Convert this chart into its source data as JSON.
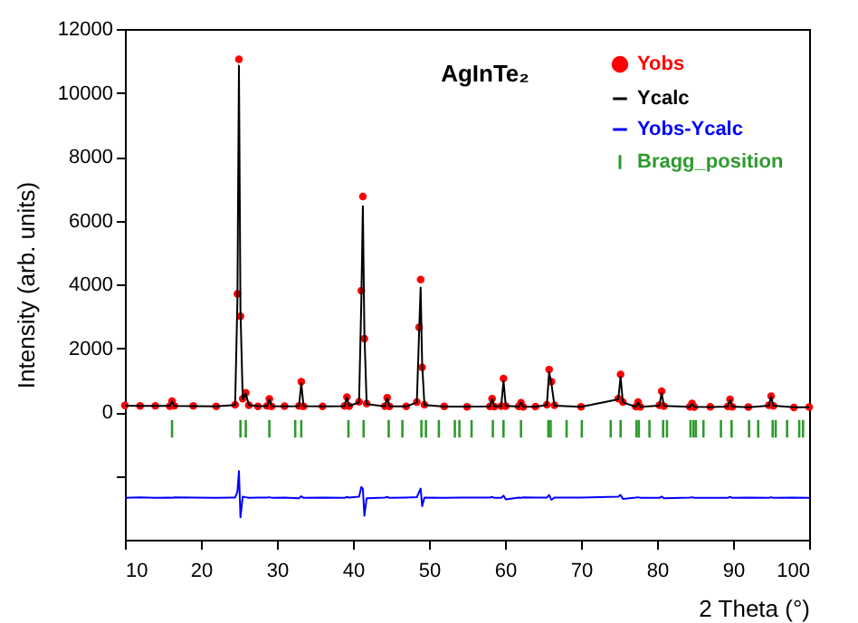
{
  "chart_data": {
    "type": "line",
    "title": "AgInTe₂",
    "xlabel": "2 Theta (°)",
    "ylabel": "Intensity (arb. units)",
    "xlim": [
      10,
      100
    ],
    "xticks": [
      10,
      20,
      30,
      40,
      50,
      60,
      70,
      80,
      90,
      100
    ],
    "ylim": [
      -4000,
      12000
    ],
    "yticks": [
      {
        "value": -2000,
        "label": null
      },
      0,
      2000,
      4000,
      6000,
      8000,
      10000,
      12000
    ],
    "legend": "top right",
    "x": [
      10,
      12,
      14,
      15.9,
      16.2,
      16.5,
      19,
      22,
      24.5,
      24.8,
      25.0,
      25.2,
      25.5,
      25.9,
      26.3,
      27.5,
      28.7,
      29.0,
      29.3,
      31,
      32.9,
      33.2,
      33.5,
      36,
      38.9,
      39.2,
      39.5,
      40.8,
      41.1,
      41.3,
      41.5,
      41.8,
      44.2,
      44.5,
      44.8,
      47,
      48.4,
      48.7,
      48.9,
      49.1,
      49.4,
      52,
      55,
      58.0,
      58.3,
      58.6,
      59.5,
      59.8,
      60.1,
      61.8,
      62.1,
      62.4,
      64,
      65.5,
      65.8,
      66.1,
      66.5,
      70,
      74.9,
      75.2,
      75.5,
      77.2,
      77.5,
      77.8,
      80.3,
      80.6,
      80.9,
      84.3,
      84.6,
      84.9,
      87,
      89.3,
      89.6,
      89.9,
      92,
      94.7,
      95.0,
      95.3,
      98,
      100
    ],
    "series": [
      {
        "name": "Yobs",
        "type": "scatter",
        "marker": "circle",
        "color": "#ff0000",
        "values": [
          205,
          190,
          195,
          185,
          340,
          195,
          190,
          175,
          230,
          3700,
          11050,
          3000,
          420,
          600,
          210,
          180,
          190,
          410,
          180,
          185,
          190,
          950,
          180,
          175,
          190,
          470,
          185,
          320,
          3800,
          6750,
          2300,
          260,
          185,
          450,
          175,
          180,
          310,
          2650,
          4150,
          1400,
          230,
          175,
          165,
          180,
          420,
          170,
          185,
          1050,
          185,
          175,
          290,
          165,
          170,
          230,
          1330,
          950,
          210,
          160,
          420,
          1180,
          310,
          170,
          310,
          160,
          210,
          650,
          185,
          165,
          270,
          155,
          160,
          175,
          400,
          165,
          155,
          210,
          500,
          195,
          145,
          155
        ]
      },
      {
        "name": "Ycalc",
        "color": "#000000",
        "values": [
          200,
          195,
          190,
          190,
          330,
          190,
          185,
          180,
          220,
          3500,
          10850,
          3200,
          400,
          580,
          220,
          185,
          185,
          400,
          185,
          180,
          185,
          900,
          185,
          180,
          185,
          450,
          190,
          300,
          3500,
          6450,
          2500,
          250,
          180,
          430,
          180,
          175,
          300,
          2500,
          3900,
          1500,
          220,
          170,
          170,
          175,
          400,
          175,
          180,
          980,
          190,
          170,
          300,
          170,
          165,
          220,
          1250,
          900,
          200,
          165,
          400,
          1100,
          300,
          165,
          300,
          165,
          200,
          600,
          190,
          160,
          260,
          160,
          155,
          170,
          380,
          170,
          150,
          200,
          480,
          200,
          150,
          150
        ]
      },
      {
        "name": "Yobs-Ycalc",
        "type": "line",
        "color": "#0000ff",
        "values": [
          -2690,
          -2675,
          -2685,
          -2680,
          -2690,
          -2675,
          -2680,
          -2685,
          -2680,
          -2500,
          -1850,
          -3300,
          -2650,
          -2670,
          -2690,
          -2680,
          -2680,
          -2670,
          -2685,
          -2680,
          -2700,
          -2640,
          -2690,
          -2680,
          -2690,
          -2660,
          -2680,
          -2650,
          -2350,
          -2400,
          -3250,
          -2700,
          -2680,
          -2660,
          -2690,
          -2680,
          -2670,
          -2500,
          -2400,
          -2950,
          -2680,
          -2685,
          -2680,
          -2680,
          -2660,
          -2690,
          -2690,
          -2620,
          -2740,
          -2680,
          -2690,
          -2675,
          -2680,
          -2680,
          -2600,
          -2750,
          -2680,
          -2680,
          -2650,
          -2600,
          -2720,
          -2680,
          -2670,
          -2690,
          -2690,
          -2650,
          -2700,
          -2680,
          -2670,
          -2690,
          -2685,
          -2690,
          -2660,
          -2690,
          -2680,
          -2690,
          -2670,
          -2690,
          -2680,
          -2685
        ]
      },
      {
        "name": "Bragg_position",
        "type": "bar",
        "color": "#2e9a2e",
        "x": [
          16.2,
          25.2,
          25.9,
          29.0,
          32.4,
          33.2,
          39.4,
          41.4,
          44.7,
          46.5,
          49.0,
          49.6,
          51.3,
          53.4,
          54.0,
          55.6,
          58.4,
          59.8,
          62.1,
          65.7,
          66.0,
          68.1,
          70.1,
          73.9,
          75.2,
          77.3,
          77.6,
          79.0,
          80.8,
          81.3,
          84.4,
          84.8,
          85.1,
          86.1,
          88.4,
          89.8,
          92.1,
          93.3,
          95.2,
          95.6,
          97.1,
          98.7,
          99.2
        ],
        "base": [
          -800,
          -800,
          -800,
          -800,
          -800,
          -800,
          -800,
          -800,
          -800,
          -800,
          -800,
          -800,
          -800,
          -800,
          -800,
          -800,
          -800,
          -800,
          -800,
          -800,
          -800,
          -800,
          -800,
          -800,
          -800,
          -800,
          -800,
          -800,
          -800,
          -800,
          -800,
          -800,
          -800,
          -800,
          -800,
          -800,
          -800,
          -800,
          -800,
          -800,
          -800,
          -800,
          -800
        ],
        "values": [
          550,
          550,
          550,
          550,
          550,
          550,
          550,
          550,
          550,
          550,
          550,
          550,
          550,
          550,
          550,
          550,
          550,
          550,
          550,
          550,
          550,
          550,
          550,
          550,
          550,
          550,
          550,
          550,
          550,
          550,
          550,
          550,
          550,
          550,
          550,
          550,
          550,
          550,
          550,
          550,
          550,
          550,
          550
        ]
      }
    ]
  }
}
